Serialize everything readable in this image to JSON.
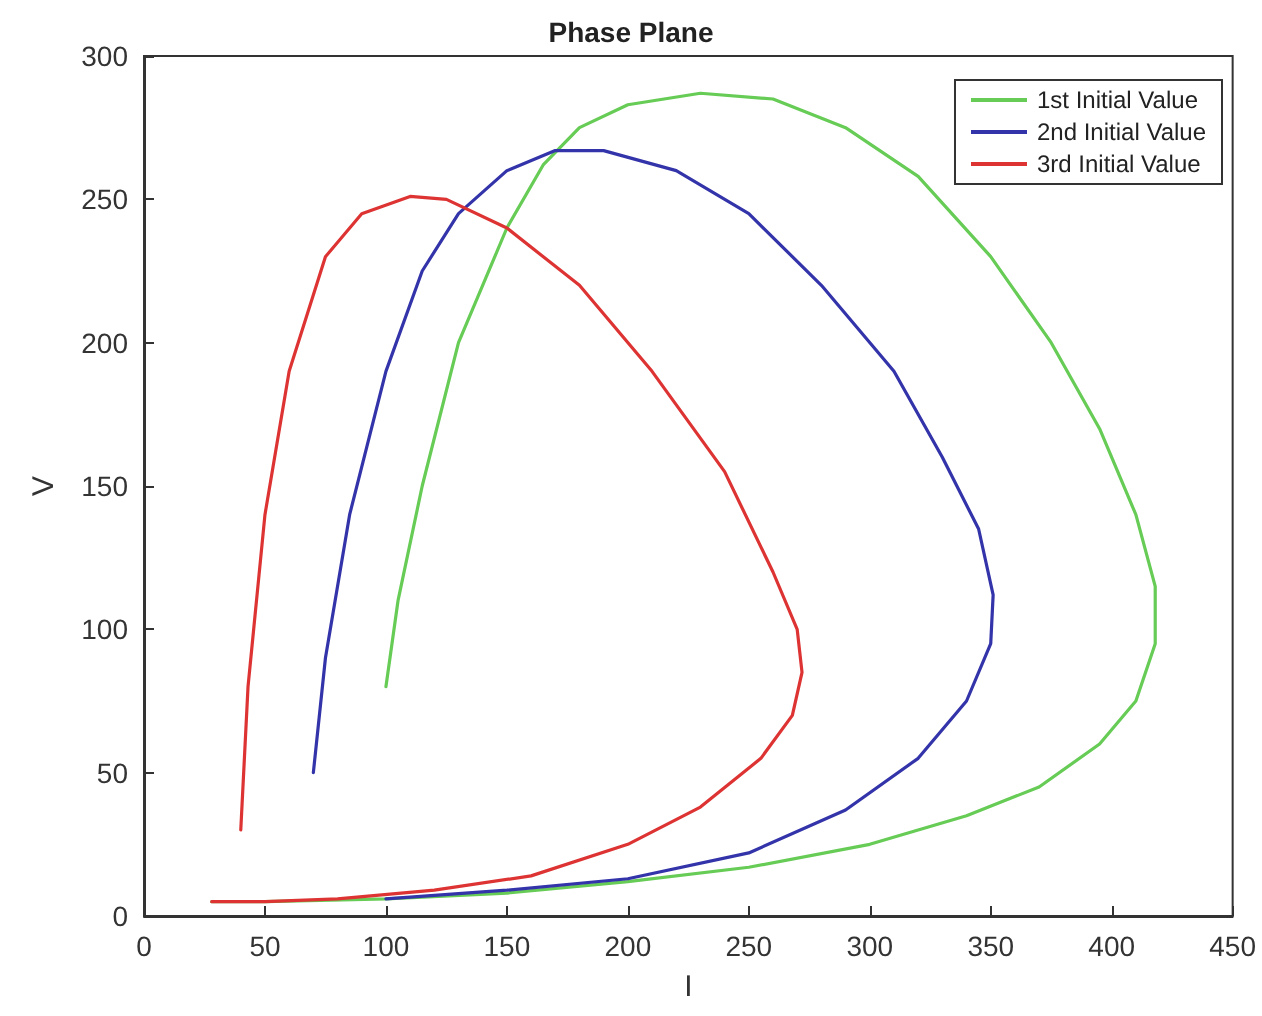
{
  "chart_data": {
    "type": "line",
    "title": "Phase Plane",
    "xlabel": "I",
    "ylabel": "V",
    "xlim": [
      0,
      450
    ],
    "ylim": [
      0,
      300
    ],
    "xticks": [
      0,
      50,
      100,
      150,
      200,
      250,
      300,
      350,
      400,
      450
    ],
    "yticks": [
      0,
      50,
      100,
      150,
      200,
      250,
      300
    ],
    "grid": false,
    "legend": "top right",
    "marker": "none",
    "line_style": "solid",
    "series": [
      {
        "name": "1st Initial Value",
        "color": "#66cc55",
        "x": [
          100,
          105,
          115,
          130,
          150,
          165,
          180,
          200,
          230,
          260,
          290,
          320,
          350,
          375,
          395,
          410,
          418,
          418,
          410,
          395,
          370,
          340,
          300,
          250,
          200,
          150,
          100,
          50,
          28
        ],
        "values": [
          80,
          110,
          150,
          200,
          240,
          262,
          275,
          283,
          287,
          285,
          275,
          258,
          230,
          200,
          170,
          140,
          115,
          95,
          75,
          60,
          45,
          35,
          25,
          17,
          12,
          8,
          6,
          5,
          5
        ]
      },
      {
        "name": "2nd Initial Value",
        "color": "#3333aa",
        "x": [
          70,
          75,
          85,
          100,
          115,
          130,
          150,
          170,
          190,
          220,
          250,
          280,
          310,
          330,
          345,
          351,
          350,
          340,
          320,
          290,
          250,
          200,
          150,
          100
        ],
        "values": [
          50,
          90,
          140,
          190,
          225,
          245,
          260,
          267,
          267,
          260,
          245,
          220,
          190,
          160,
          135,
          112,
          95,
          75,
          55,
          37,
          22,
          13,
          9,
          6
        ]
      },
      {
        "name": "3rd Initial Value",
        "color": "#dd3333",
        "x": [
          40,
          43,
          50,
          60,
          75,
          90,
          110,
          125,
          150,
          180,
          210,
          240,
          260,
          270,
          272,
          268,
          255,
          230,
          200,
          160,
          120,
          80,
          50,
          28
        ],
        "values": [
          30,
          80,
          140,
          190,
          230,
          245,
          251,
          250,
          240,
          220,
          190,
          155,
          120,
          100,
          85,
          70,
          55,
          38,
          25,
          14,
          9,
          6,
          5,
          5
        ]
      }
    ]
  }
}
